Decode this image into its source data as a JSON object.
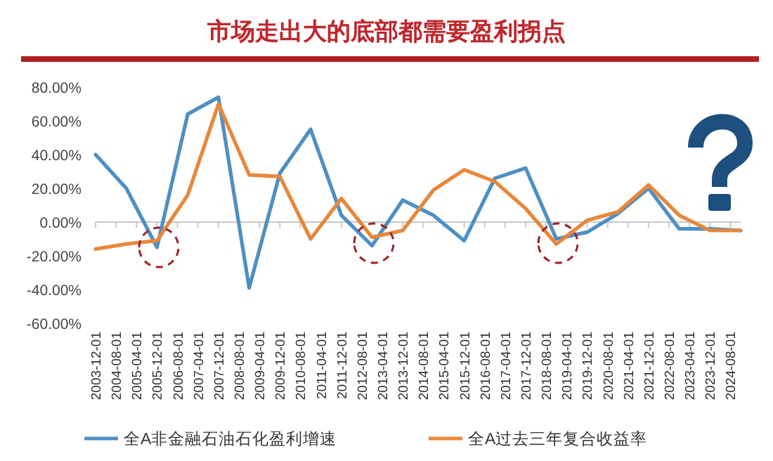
{
  "chart_data": {
    "type": "line",
    "title": "市场走出大的底部都需要盈利拐点",
    "x": [
      "2003-12-01",
      "2004-12-01",
      "2005-12-01",
      "2006-12-01",
      "2007-12-01",
      "2008-12-01",
      "2009-12-01",
      "2010-12-01",
      "2011-12-01",
      "2012-12-01",
      "2013-12-01",
      "2014-12-01",
      "2015-12-01",
      "2016-12-01",
      "2017-12-01",
      "2018-12-01",
      "2019-12-01",
      "2020-12-01",
      "2021-12-01",
      "2022-12-01",
      "2023-12-01",
      "2024-12-01"
    ],
    "series": [
      {
        "name": "全A非金融石油石化盈利增速",
        "color": "#4e8fc4",
        "values": [
          40,
          20,
          -15,
          64,
          74,
          -39,
          29,
          55,
          4,
          -14,
          13,
          4,
          -11,
          26,
          32,
          -10,
          -6,
          5,
          20,
          -4,
          -4,
          -5
        ]
      },
      {
        "name": "全A过去三年复合收益率",
        "color": "#e8873a",
        "values": [
          -16,
          -13,
          -11,
          16,
          70,
          28,
          27,
          -10,
          14,
          -9,
          -5,
          19,
          31,
          24,
          8,
          -13,
          1,
          6,
          22,
          4,
          -5,
          -5
        ]
      }
    ],
    "xlim": [
      "2003-12-01",
      "2024-12-01"
    ],
    "xticks": [
      {
        "value": "2003-12-01",
        "label": "2003-12-01"
      },
      {
        "value": "2004-08-01",
        "label": "2004-08-01"
      },
      {
        "value": "2005-04-01",
        "label": "2005-04-01"
      },
      {
        "value": "2005-12-01",
        "label": "2005-12-01"
      },
      {
        "value": "2006-08-01",
        "label": "2006-08-01"
      },
      {
        "value": "2007-04-01",
        "label": "2007-04-01"
      },
      {
        "value": "2007-12-01",
        "label": "2007-12-01"
      },
      {
        "value": "2008-08-01",
        "label": "2008-08-01"
      },
      {
        "value": "2009-04-01",
        "label": "2009-04-01"
      },
      {
        "value": "2009-12-01",
        "label": "2009-12-01"
      },
      {
        "value": "2010-08-01",
        "label": "2010-08-01"
      },
      {
        "value": "2011-04-01",
        "label": "2011-04-01"
      },
      {
        "value": "2011-12-01",
        "label": "2011-12-01"
      },
      {
        "value": "2012-08-01",
        "label": "2012-08-01"
      },
      {
        "value": "2013-04-01",
        "label": "2013-04-01"
      },
      {
        "value": "2013-12-01",
        "label": "2013-12-01"
      },
      {
        "value": "2014-08-01",
        "label": "2014-08-01"
      },
      {
        "value": "2015-04-01",
        "label": "2015-04-01"
      },
      {
        "value": "2015-12-01",
        "label": "2015-12-01"
      },
      {
        "value": "2016-08-01",
        "label": "2016-08-01"
      },
      {
        "value": "2017-04-01",
        "label": "2017-04-01"
      },
      {
        "value": "2017-12-01",
        "label": "2017-12-01"
      },
      {
        "value": "2018-08-01",
        "label": "2018-08-01"
      },
      {
        "value": "2019-04-01",
        "label": "2019-04-01"
      },
      {
        "value": "2019-12-01",
        "label": "2019-12-01"
      },
      {
        "value": "2020-08-01",
        "label": "2020-08-01"
      },
      {
        "value": "2021-04-01",
        "label": "2021-04-01"
      },
      {
        "value": "2021-12-01",
        "label": "2021-12-01"
      },
      {
        "value": "2022-08-01",
        "label": "2022-08-01"
      },
      {
        "value": "2023-04-01",
        "label": "2023-04-01"
      },
      {
        "value": "2023-12-01",
        "label": "2023-12-01"
      },
      {
        "value": "2024-08-01",
        "label": "2024-08-01"
      }
    ],
    "ylim": [
      -60,
      80
    ],
    "yticks": [
      {
        "value": 80,
        "label": "80.00%"
      },
      {
        "value": 60,
        "label": "60.00%"
      },
      {
        "value": 40,
        "label": "40.00%"
      },
      {
        "value": 20,
        "label": "20.00%"
      },
      {
        "value": 0,
        "label": "0.00%"
      },
      {
        "value": -20,
        "label": "-20.00%"
      },
      {
        "value": -40,
        "label": "-40.00%"
      },
      {
        "value": -60,
        "label": "-60.00%"
      }
    ],
    "legend": "bottom",
    "marker": "none",
    "line_style": "solid"
  }
}
